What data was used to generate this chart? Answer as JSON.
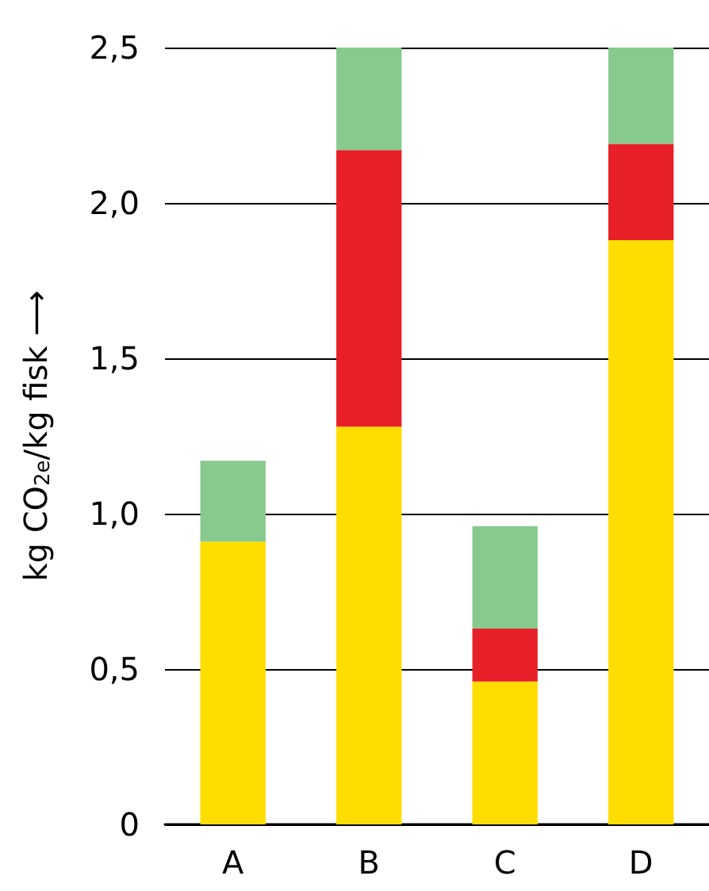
{
  "chart_data": {
    "type": "bar",
    "stacked": true,
    "ylabel": "kg CO$_{2e}$/kg fisk ⟶",
    "categories": [
      "A",
      "B",
      "C",
      "D"
    ],
    "series": [
      {
        "color": "#ffdd00",
        "values": [
          0.91,
          1.28,
          0.46,
          1.88
        ]
      },
      {
        "color": "#e8202a",
        "values": [
          null,
          0.89,
          0.17,
          0.31
        ]
      },
      {
        "color": "#88c98e",
        "values": [
          0.26,
          0.33,
          0.33,
          0.31
        ]
      }
    ],
    "ylim": [
      0,
      2.5
    ],
    "yticks": [
      {
        "value": 0,
        "label": "0"
      },
      {
        "value": 0.5,
        "label": "0,5"
      },
      {
        "value": 1,
        "label": "1,0"
      },
      {
        "value": 1.5,
        "label": "1,5"
      },
      {
        "value": 2,
        "label": "2,0"
      },
      {
        "value": 2.5,
        "label": "2,5"
      }
    ],
    "grid": "y",
    "legend": false
  }
}
